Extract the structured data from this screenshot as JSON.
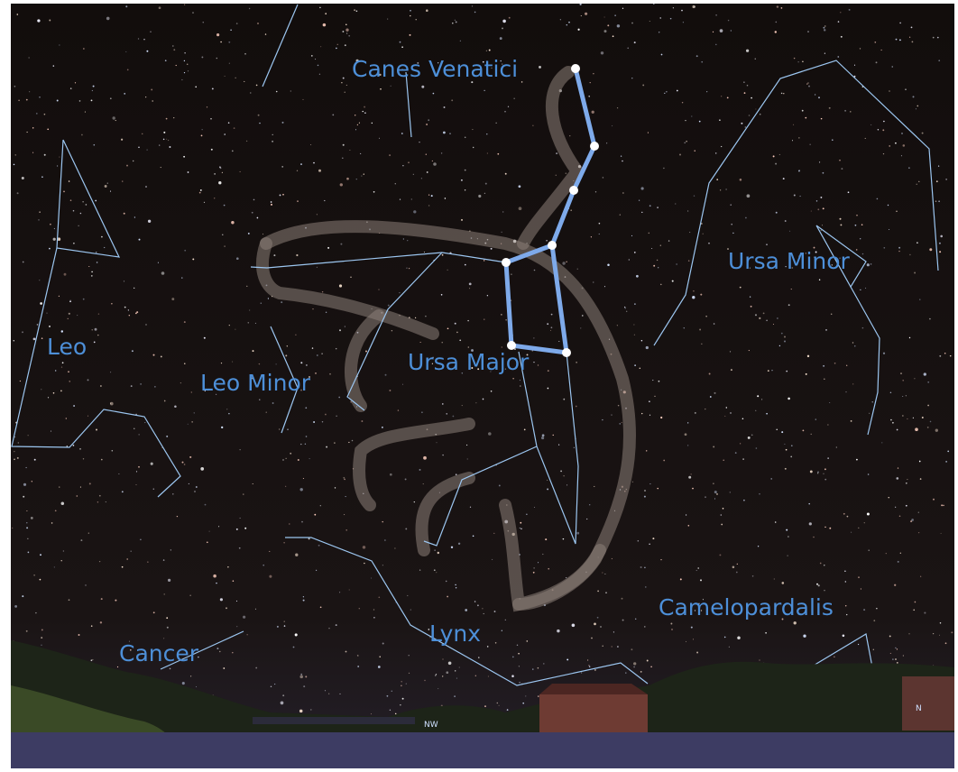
{
  "constellations": [
    {
      "name": "Canes Venatici"
    },
    {
      "name": "Ursa Minor"
    },
    {
      "name": "Leo"
    },
    {
      "name": "Leo Minor"
    },
    {
      "name": "Ursa Major"
    },
    {
      "name": "Camelopardalis"
    },
    {
      "name": "Lynx"
    },
    {
      "name": "Cancer"
    }
  ],
  "compass": [
    "NW",
    "N"
  ]
}
